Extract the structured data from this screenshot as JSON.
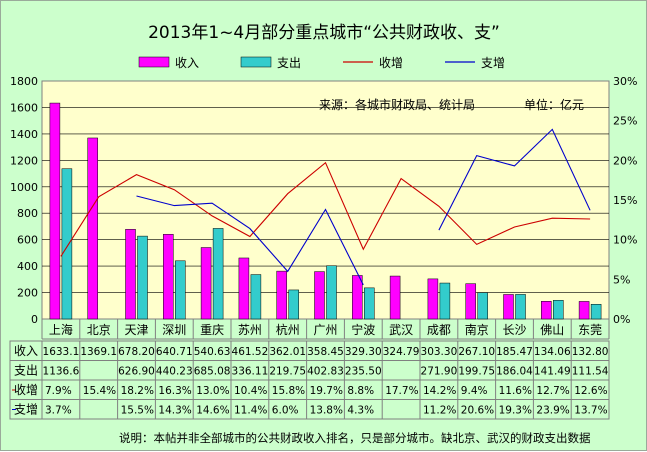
{
  "chart_data": {
    "type": "bar",
    "title": "2013年1~4月部分重点城市“公共财政收、支”",
    "source_note": "来源：各城市财政局、统计局",
    "unit_note": "单位：亿元",
    "footnote": "说明：本帖并非全部城市的公共财政收入排名，只是部分城市。缺北京、武汉的财政支出数据",
    "categories": [
      "上海",
      "北京",
      "天津",
      "深圳",
      "重庆",
      "苏州",
      "杭州",
      "广州",
      "宁波",
      "武汉",
      "成都",
      "南京",
      "长沙",
      "佛山",
      "东莞"
    ],
    "y_ticks_left": [
      "0",
      "200",
      "400",
      "600",
      "800",
      "1000",
      "1200",
      "1400",
      "1600",
      "1800"
    ],
    "y_ticks_right": [
      "0%",
      "5%",
      "10%",
      "15%",
      "20%",
      "25%",
      "30%"
    ],
    "ylim_left": [
      0,
      1800
    ],
    "ylim_right": [
      0,
      30
    ],
    "grid": true,
    "legend_position": "top",
    "colors": {
      "income": "#ff00ff",
      "expense": "#33cccc",
      "income_growth": "#cc0000",
      "expense_growth": "#0000cc",
      "plot_bg": "#ffffcc",
      "outer_bg": "#ccffcc"
    },
    "series": [
      {
        "name": "收入",
        "kind": "bar",
        "axis": "left",
        "values": [
          1633.1,
          1369.1,
          678.2,
          640.71,
          540.63,
          461.52,
          362.01,
          358.45,
          329.3,
          324.79,
          303.3,
          267.1,
          185.47,
          134.06,
          132.8
        ],
        "labels": [
          "1633.1",
          "1369.1",
          "678.20",
          "640.71",
          "540.63",
          "461.52",
          "362.01",
          "358.45",
          "329.30",
          "324.79",
          "303.30",
          "267.10",
          "185.47",
          "134.06",
          "132.80"
        ]
      },
      {
        "name": "支出",
        "kind": "bar",
        "axis": "left",
        "values": [
          1136.6,
          null,
          626.9,
          440.23,
          685.08,
          336.11,
          219.75,
          402.83,
          235.5,
          null,
          271.9,
          199.75,
          186.04,
          141.49,
          111.54
        ],
        "labels": [
          "1136.6",
          "",
          "626.90",
          "440.23",
          "685.08",
          "336.11",
          "219.75",
          "402.83",
          "235.50",
          "",
          "271.90",
          "199.75",
          "186.04",
          "141.49",
          "111.54"
        ]
      },
      {
        "name": "收增",
        "kind": "line",
        "axis": "right",
        "values": [
          7.9,
          15.4,
          18.2,
          16.3,
          13.0,
          10.4,
          15.8,
          19.7,
          8.8,
          17.7,
          14.2,
          9.4,
          11.6,
          12.7,
          12.6
        ],
        "labels": [
          "7.9%",
          "15.4%",
          "18.2%",
          "16.3%",
          "13.0%",
          "10.4%",
          "15.8%",
          "19.7%",
          "8.8%",
          "17.7%",
          "14.2%",
          "9.4%",
          "11.6%",
          "12.7%",
          "12.6%"
        ]
      },
      {
        "name": "支增",
        "kind": "line",
        "axis": "right",
        "values": [
          3.7,
          null,
          15.5,
          14.3,
          14.6,
          11.4,
          6.0,
          13.8,
          4.3,
          null,
          11.2,
          20.6,
          19.3,
          23.9,
          13.7
        ],
        "labels": [
          "3.7%",
          "",
          "15.5%",
          "14.3%",
          "14.6%",
          "11.4%",
          "6.0%",
          "13.8%",
          "4.3%",
          "",
          "11.2%",
          "20.6%",
          "19.3%",
          "23.9%",
          "13.7%"
        ]
      }
    ]
  }
}
